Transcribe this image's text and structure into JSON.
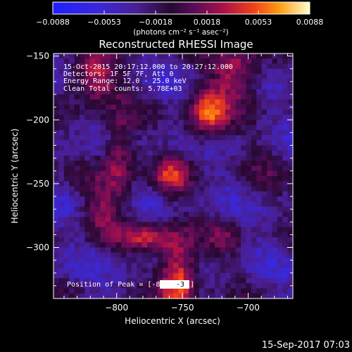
{
  "chart_data": {
    "type": "heatmap",
    "title": "Reconstructed RHESSI Image",
    "xlabel": "Heliocentric X (arcsec)",
    "ylabel": "Heliocentric Y (arcsec)",
    "xlim": [
      -848,
      -666
    ],
    "ylim": [
      -340,
      -148
    ],
    "x_ticks": [
      -800,
      -750,
      -700
    ],
    "y_ticks": [
      -300,
      -250,
      -200,
      -150
    ],
    "colorbar": {
      "min": -0.0088,
      "max": 0.0088,
      "ticks": [
        "-0.0088",
        "-0.0053",
        "-0.0018",
        "0.0018",
        "0.0053",
        "0.0088"
      ],
      "units": "(photons cm⁻² s⁻¹ asec⁻²)"
    },
    "grid_nx": 46,
    "grid_ny": 48,
    "sources": [
      {
        "x": -753,
        "y": -322,
        "peak": 0.0088,
        "sx": 10,
        "sy": 22
      },
      {
        "x": -778,
        "y": -292,
        "peak": 0.0055,
        "sx": 14,
        "sy": 8
      },
      {
        "x": -731,
        "y": -196,
        "peak": 0.0078,
        "sx": 11,
        "sy": 15
      },
      {
        "x": -758,
        "y": -245,
        "peak": 0.006,
        "sx": 10,
        "sy": 10
      },
      {
        "x": -818,
        "y": -168,
        "peak": 0.0068,
        "sx": 13,
        "sy": 14
      },
      {
        "x": -798,
        "y": -228,
        "peak": 0.0055,
        "sx": 9,
        "sy": 25
      },
      {
        "x": -708,
        "y": -162,
        "peak": 0.0062,
        "sx": 13,
        "sy": 16
      },
      {
        "x": -812,
        "y": -270,
        "peak": 0.004,
        "sx": 10,
        "sy": 16
      },
      {
        "x": -718,
        "y": -292,
        "peak": 0.003,
        "sx": 10,
        "sy": 10
      },
      {
        "x": -690,
        "y": -240,
        "peak": 0.0015,
        "sx": 12,
        "sy": 20
      }
    ],
    "background_level": -0.003,
    "annotations": [
      "15-Oct-2015 20:17:12.000 to 20:27:12.000",
      "Detectors: 1F 5F 7F, Att 0",
      "Energy Range: 12.0 - 25.0 keV",
      "Clean     Total counts: 5.78E+03"
    ],
    "peak_label": "Position of Peak = [-85",
    "peak_label_tail": "-3",
    "timestamp": "15-Sep-2017 07:03"
  }
}
